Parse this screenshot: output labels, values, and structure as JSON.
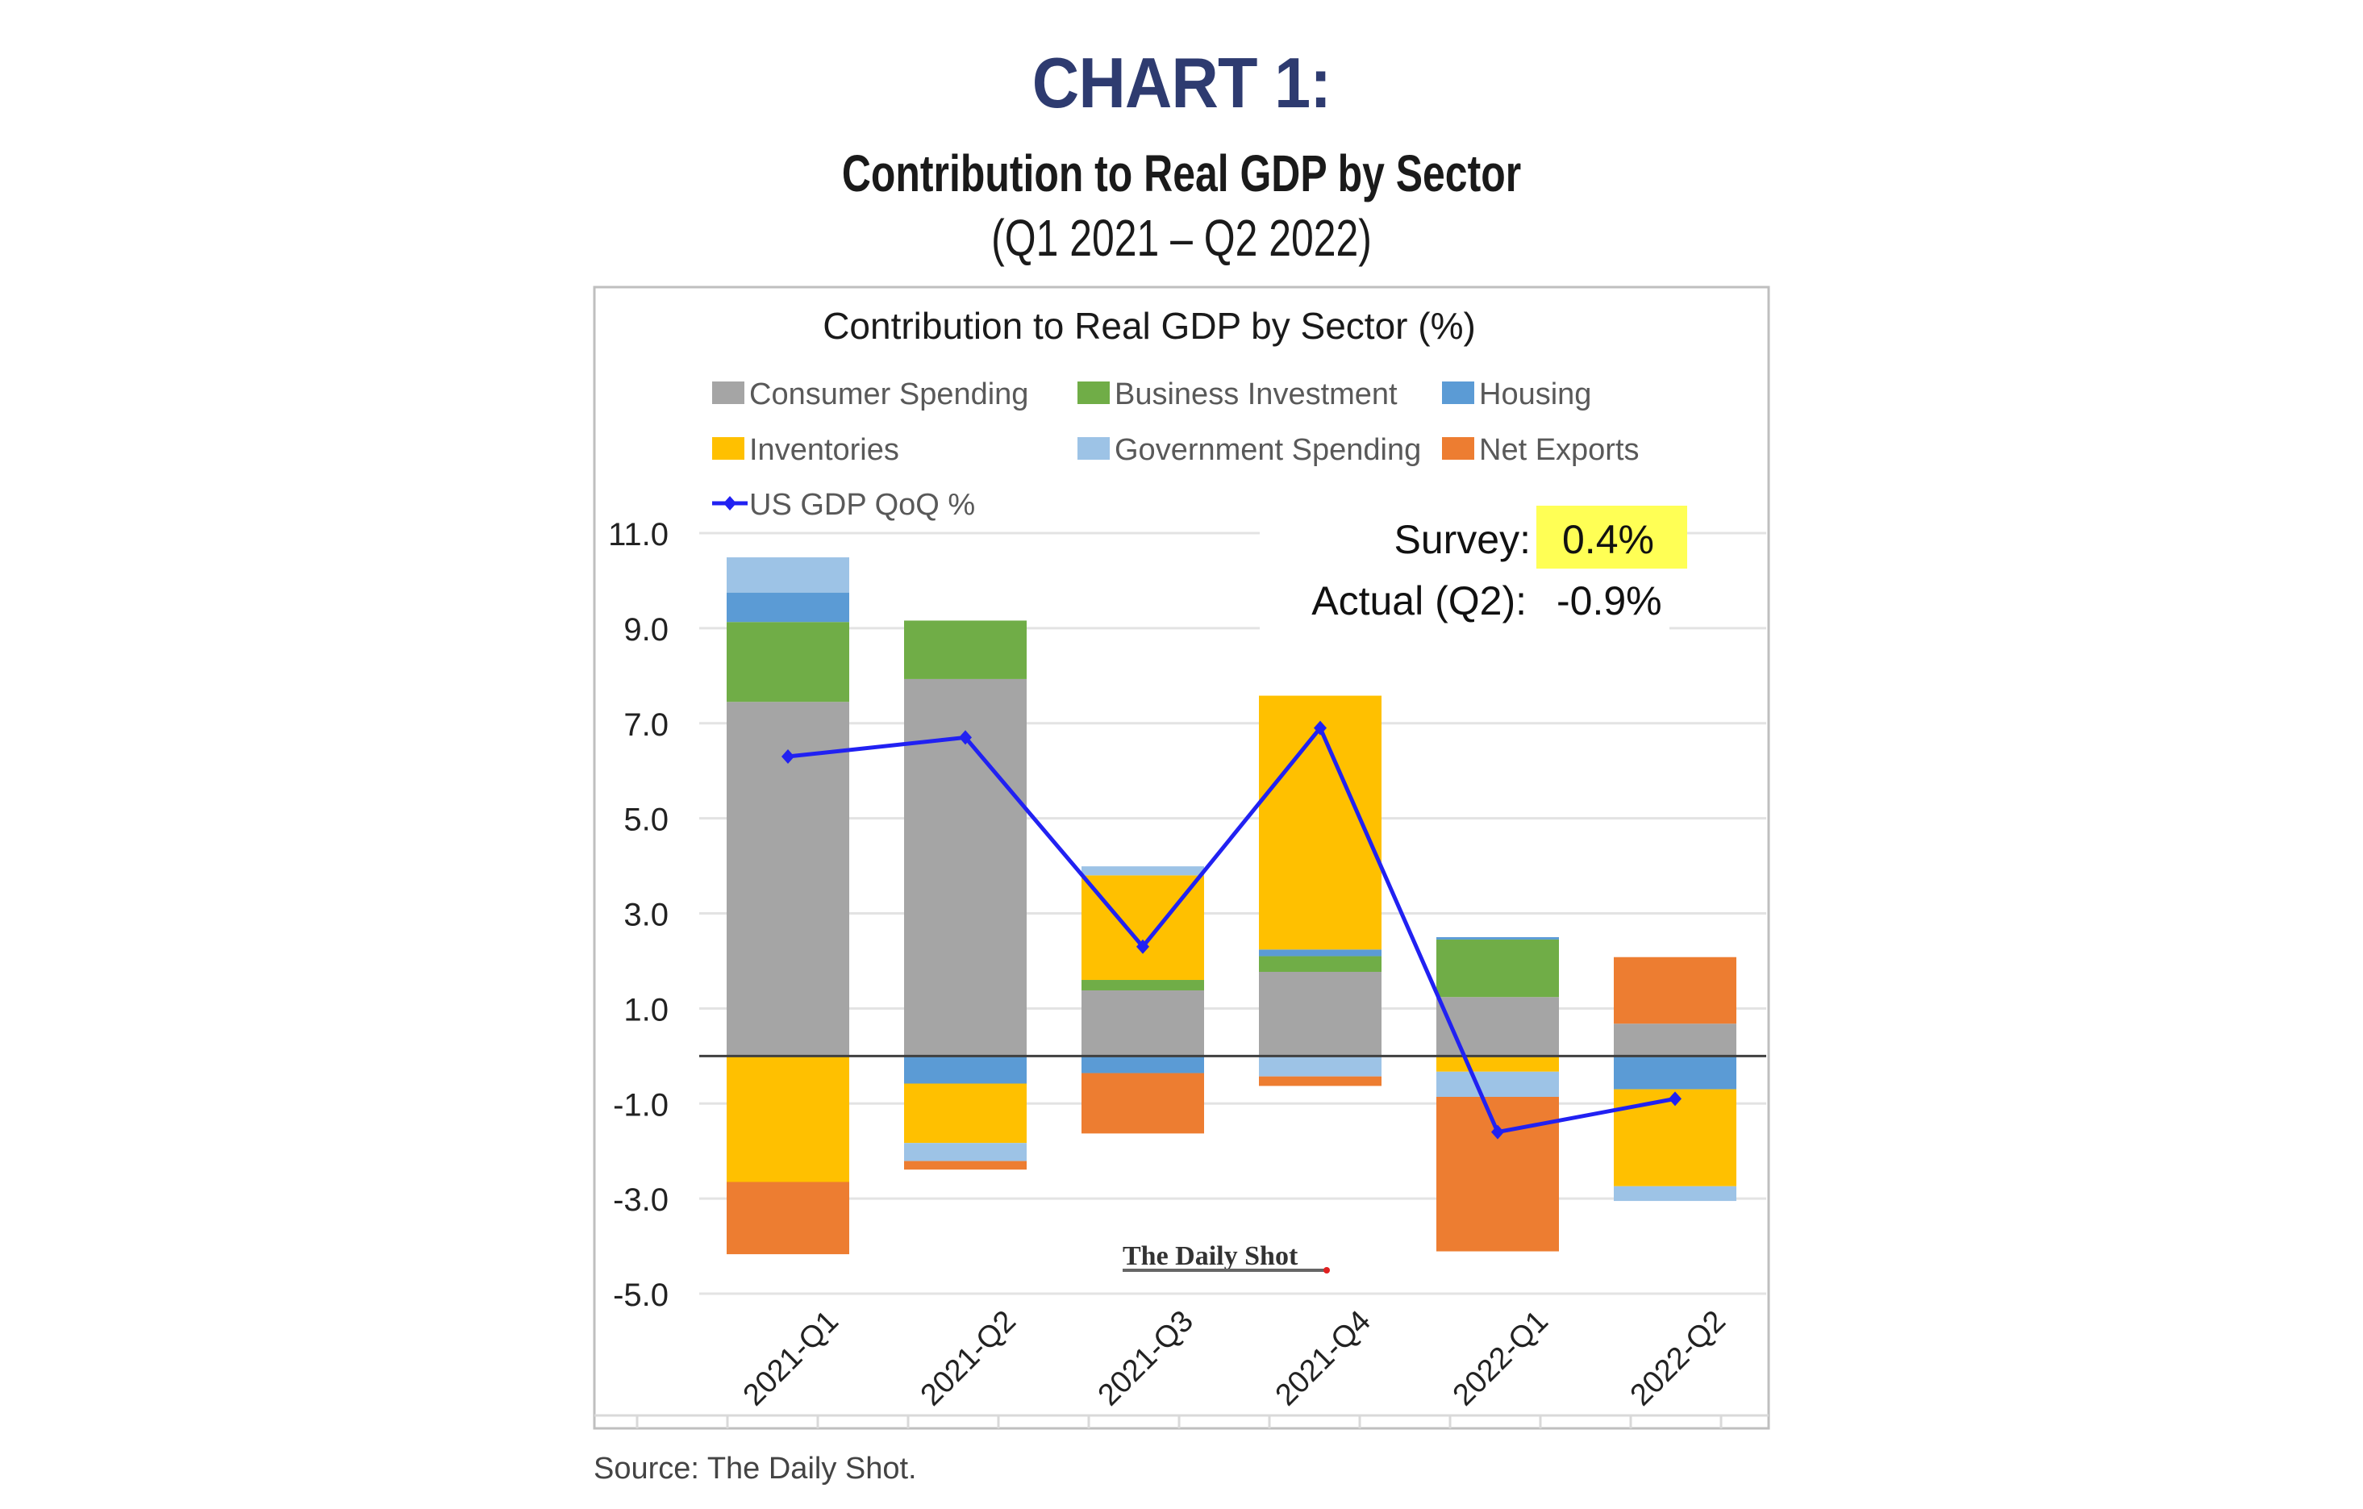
{
  "header": {
    "title": "CHART 1:",
    "subtitle": "Contribution to Real GDP by Sector",
    "range": "(Q1 2021 – Q2 2022)"
  },
  "source": "Source: The Daily Shot.",
  "watermark": "The Daily Shot",
  "annotation": {
    "survey_label": "Survey:",
    "survey_value": "0.4%",
    "actual_label": "Actual (Q2):",
    "actual_value": "-0.9%",
    "highlight_color": "#FFFF55"
  },
  "chart_data": {
    "type": "bar",
    "stacked": true,
    "title": "Contribution to Real GDP by Sector (%)",
    "xlabel": "",
    "ylabel": "",
    "ylim": [
      -5.0,
      11.0
    ],
    "yticks": [
      11.0,
      9.0,
      7.0,
      5.0,
      3.0,
      1.0,
      -1.0,
      -3.0,
      -5.0
    ],
    "ytick_labels": [
      "11.0",
      "9.0",
      "7.0",
      "5.0",
      "3.0",
      "1.0",
      "-1.0",
      "-3.0",
      "-5.0"
    ],
    "grid": true,
    "legend_position": "top",
    "categories": [
      "2021-Q1",
      "2021-Q2",
      "2021-Q3",
      "2021-Q4",
      "2022-Q1",
      "2022-Q2"
    ],
    "series": [
      {
        "name": "Consumer Spending",
        "color": "#A5A5A5",
        "values": [
          7.45,
          7.93,
          1.38,
          1.77,
          1.24,
          0.68
        ]
      },
      {
        "name": "Business Investment",
        "color": "#70AD47",
        "values": [
          1.68,
          1.23,
          0.22,
          0.33,
          1.21,
          0.0
        ]
      },
      {
        "name": "Housing",
        "color": "#5B9BD5",
        "values": [
          0.62,
          -0.58,
          -0.36,
          0.14,
          0.05,
          -0.7
        ]
      },
      {
        "name": "Inventories",
        "color": "#FFC000",
        "values": [
          -2.65,
          -1.25,
          2.2,
          5.34,
          -0.33,
          -2.04
        ]
      },
      {
        "name": "Government Spending",
        "color": "#9DC3E6",
        "values": [
          0.74,
          -0.38,
          0.19,
          -0.43,
          -0.53,
          -0.31
        ]
      },
      {
        "name": "Net Exports",
        "color": "#ED7D31",
        "values": [
          -1.52,
          -0.18,
          -1.27,
          -0.2,
          -3.25,
          1.4
        ]
      }
    ],
    "line_series": {
      "name": "US GDP QoQ %",
      "color": "#2121F2",
      "values": [
        6.3,
        6.7,
        2.3,
        6.9,
        -1.6,
        -0.9
      ]
    },
    "legend_order": [
      "Consumer Spending",
      "Business Investment",
      "Housing",
      "Inventories",
      "Government Spending",
      "Net Exports",
      "US GDP QoQ %"
    ]
  }
}
